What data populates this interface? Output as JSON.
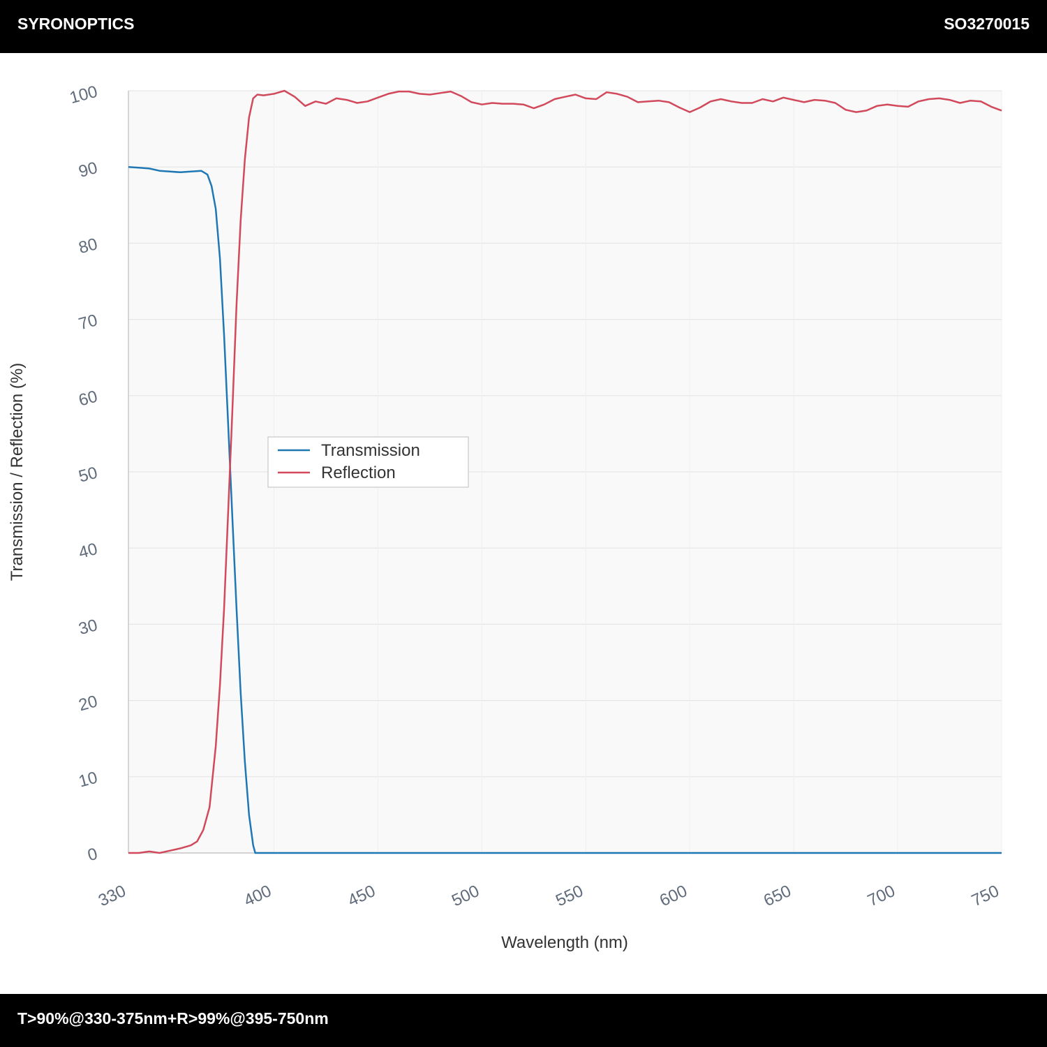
{
  "header": {
    "brand": "SYRONOPTICS",
    "part_number": "SO3270015"
  },
  "footer": {
    "spec": "T>90%@330-375nm+R>99%@395-750nm"
  },
  "colors": {
    "transmission": "#1f77b4",
    "reflection": "#d1495b",
    "plot_bg": "#f9f9f9",
    "grid": "#e6e6e6"
  },
  "chart_data": {
    "type": "line",
    "xlabel": "Wavelength (nm)",
    "ylabel": "Transmission / Reflection (%)",
    "xlim": [
      330,
      750
    ],
    "ylim": [
      0,
      100
    ],
    "x_ticks": [
      330,
      400,
      450,
      500,
      550,
      600,
      650,
      700,
      750
    ],
    "y_ticks": [
      0,
      10,
      20,
      30,
      40,
      50,
      60,
      70,
      80,
      90,
      100
    ],
    "grid": true,
    "legend_position": "center-left",
    "series": [
      {
        "name": "Transmission",
        "color": "#1f77b4",
        "points": [
          [
            330,
            90.0
          ],
          [
            335,
            89.9
          ],
          [
            340,
            89.8
          ],
          [
            345,
            89.5
          ],
          [
            350,
            89.4
          ],
          [
            355,
            89.3
          ],
          [
            360,
            89.4
          ],
          [
            365,
            89.5
          ],
          [
            368,
            89.0
          ],
          [
            370,
            87.5
          ],
          [
            372,
            84.5
          ],
          [
            374,
            78.0
          ],
          [
            376,
            68.0
          ],
          [
            378,
            56.0
          ],
          [
            380,
            44.0
          ],
          [
            382,
            32.0
          ],
          [
            384,
            21.0
          ],
          [
            386,
            12.0
          ],
          [
            388,
            5.0
          ],
          [
            390,
            1.0
          ],
          [
            391,
            0.0
          ],
          [
            400,
            0.0
          ],
          [
            450,
            0.0
          ],
          [
            500,
            0.0
          ],
          [
            550,
            0.0
          ],
          [
            600,
            0.0
          ],
          [
            650,
            0.0
          ],
          [
            700,
            0.0
          ],
          [
            750,
            0.0
          ]
        ]
      },
      {
        "name": "Reflection",
        "color": "#d1495b",
        "points": [
          [
            330,
            0.0
          ],
          [
            335,
            0.0
          ],
          [
            340,
            0.2
          ],
          [
            345,
            0.0
          ],
          [
            350,
            0.3
          ],
          [
            355,
            0.6
          ],
          [
            360,
            1.0
          ],
          [
            363,
            1.5
          ],
          [
            366,
            3.0
          ],
          [
            369,
            6.0
          ],
          [
            372,
            14.0
          ],
          [
            374,
            22.0
          ],
          [
            376,
            32.0
          ],
          [
            378,
            45.0
          ],
          [
            380,
            58.0
          ],
          [
            382,
            72.0
          ],
          [
            384,
            83.0
          ],
          [
            386,
            91.0
          ],
          [
            388,
            96.5
          ],
          [
            390,
            99.0
          ],
          [
            392,
            99.5
          ],
          [
            395,
            99.4
          ],
          [
            400,
            99.6
          ],
          [
            405,
            100.0
          ],
          [
            410,
            99.2
          ],
          [
            415,
            98.0
          ],
          [
            420,
            98.6
          ],
          [
            425,
            98.3
          ],
          [
            430,
            99.0
          ],
          [
            435,
            98.8
          ],
          [
            440,
            98.4
          ],
          [
            445,
            98.6
          ],
          [
            450,
            99.1
          ],
          [
            455,
            99.6
          ],
          [
            460,
            99.9
          ],
          [
            465,
            99.9
          ],
          [
            470,
            99.6
          ],
          [
            475,
            99.5
          ],
          [
            480,
            99.7
          ],
          [
            485,
            99.9
          ],
          [
            490,
            99.3
          ],
          [
            495,
            98.5
          ],
          [
            500,
            98.2
          ],
          [
            505,
            98.4
          ],
          [
            510,
            98.3
          ],
          [
            515,
            98.3
          ],
          [
            520,
            98.2
          ],
          [
            525,
            97.7
          ],
          [
            530,
            98.2
          ],
          [
            535,
            98.9
          ],
          [
            540,
            99.2
          ],
          [
            545,
            99.5
          ],
          [
            550,
            99.0
          ],
          [
            555,
            98.9
          ],
          [
            560,
            99.8
          ],
          [
            565,
            99.6
          ],
          [
            570,
            99.2
          ],
          [
            575,
            98.5
          ],
          [
            580,
            98.6
          ],
          [
            585,
            98.7
          ],
          [
            590,
            98.5
          ],
          [
            595,
            97.8
          ],
          [
            600,
            97.2
          ],
          [
            605,
            97.8
          ],
          [
            610,
            98.6
          ],
          [
            615,
            98.9
          ],
          [
            620,
            98.6
          ],
          [
            625,
            98.4
          ],
          [
            630,
            98.4
          ],
          [
            635,
            98.9
          ],
          [
            640,
            98.6
          ],
          [
            645,
            99.1
          ],
          [
            650,
            98.8
          ],
          [
            655,
            98.5
          ],
          [
            660,
            98.8
          ],
          [
            665,
            98.7
          ],
          [
            670,
            98.4
          ],
          [
            675,
            97.5
          ],
          [
            680,
            97.2
          ],
          [
            685,
            97.4
          ],
          [
            690,
            98.0
          ],
          [
            695,
            98.2
          ],
          [
            700,
            98.0
          ],
          [
            705,
            97.9
          ],
          [
            710,
            98.6
          ],
          [
            715,
            98.9
          ],
          [
            720,
            99.0
          ],
          [
            725,
            98.8
          ],
          [
            730,
            98.4
          ],
          [
            735,
            98.7
          ],
          [
            740,
            98.6
          ],
          [
            745,
            97.9
          ],
          [
            750,
            97.4
          ]
        ]
      }
    ]
  }
}
